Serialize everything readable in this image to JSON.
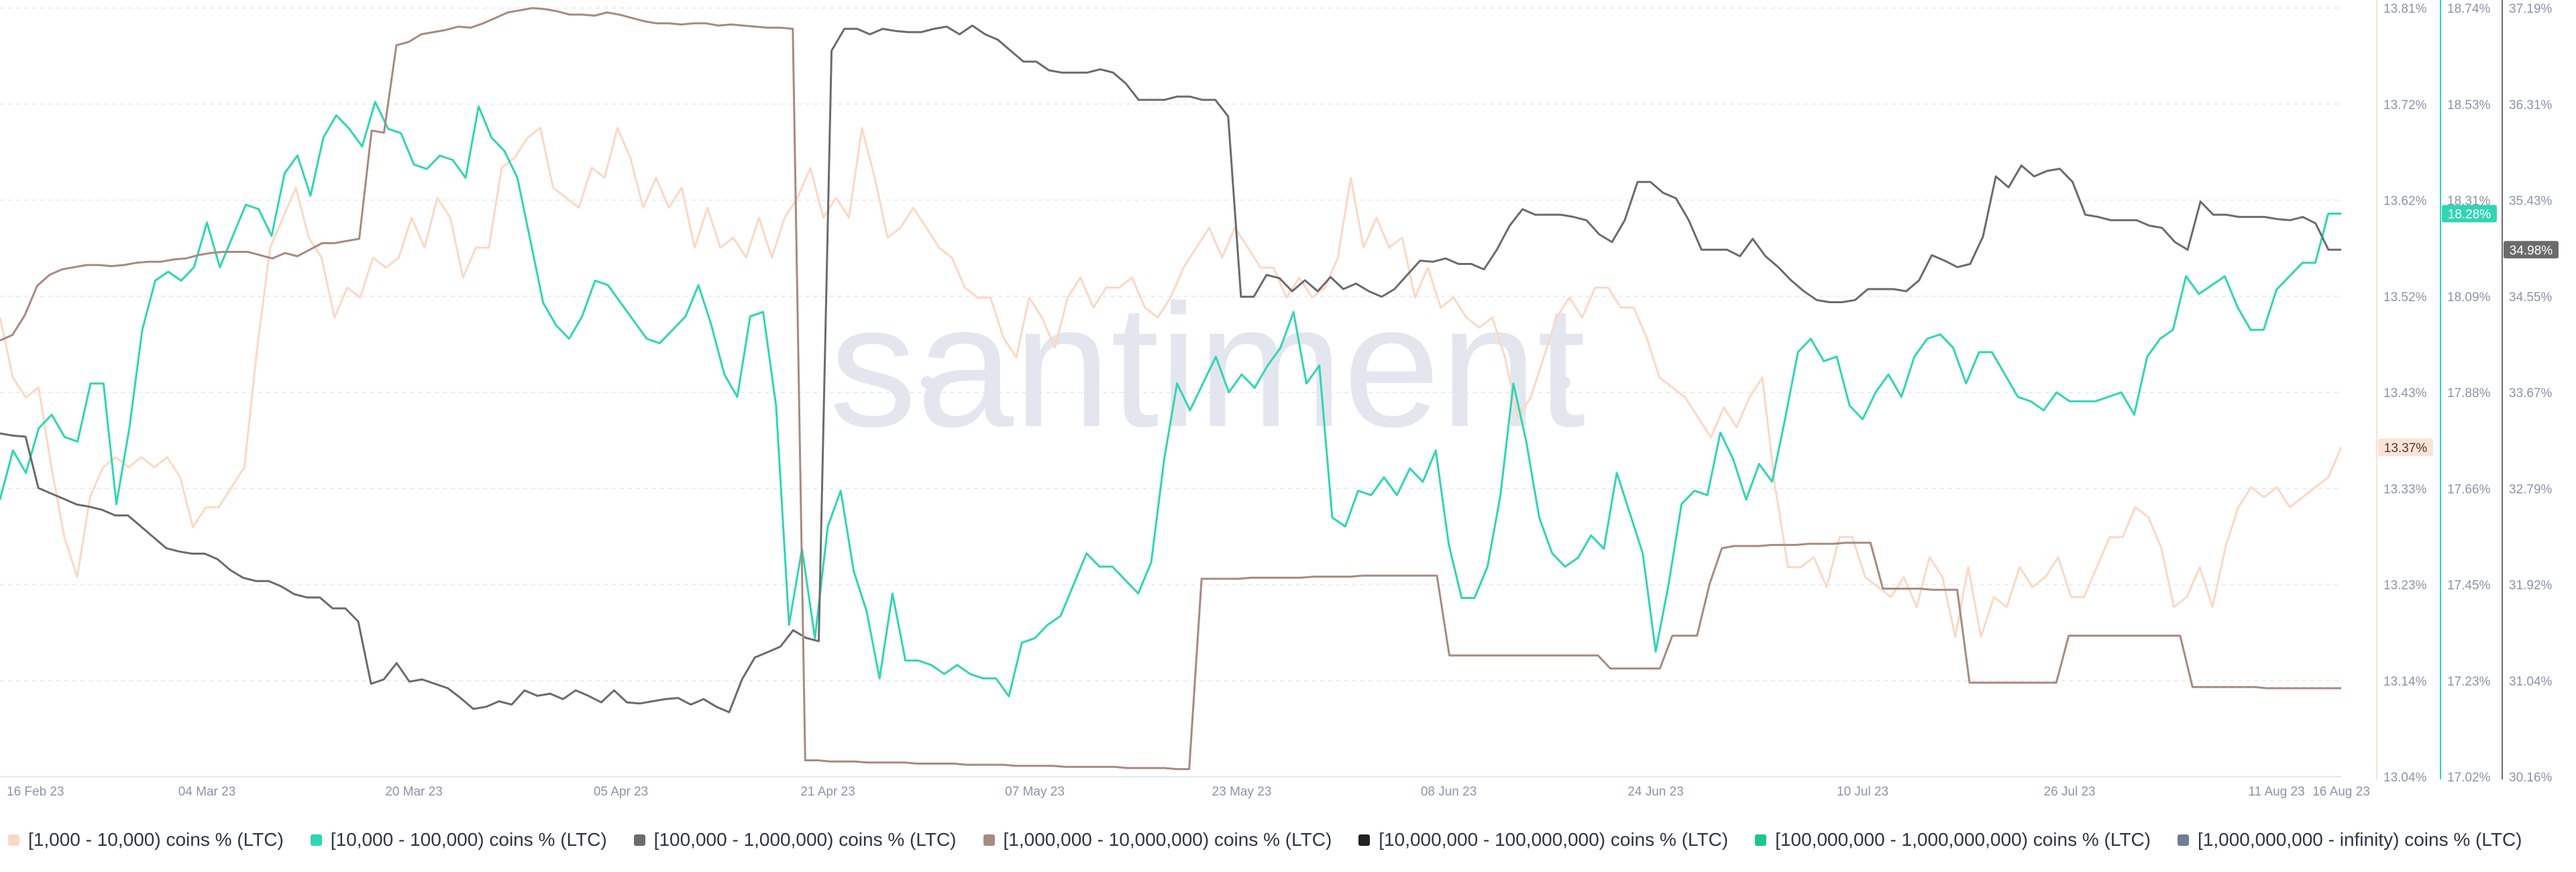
{
  "chart_data": {
    "type": "line",
    "title": "",
    "watermark": "santiment",
    "x_labels": [
      "16 Feb 23",
      "04 Mar 23",
      "20 Mar 23",
      "05 Apr 23",
      "21 Apr 23",
      "07 May 23",
      "23 May 23",
      "08 Jun 23",
      "24 Jun 23",
      "10 Jul 23",
      "26 Jul 23",
      "11 Aug 23",
      "16 Aug 23"
    ],
    "x_label_days": [
      0,
      16,
      32,
      48,
      64,
      80,
      96,
      112,
      128,
      144,
      160,
      176,
      181
    ],
    "axes": [
      {
        "id": "a1",
        "ticks": [
          "13.81%",
          "13.72%",
          "13.62%",
          "13.52%",
          "13.43%",
          "13.33%",
          "13.23%",
          "13.14%",
          "13.04%"
        ],
        "min": 13.04,
        "max": 13.81
      },
      {
        "id": "a2",
        "ticks": [
          "18.74%",
          "18.53%",
          "18.31%",
          "18.09%",
          "17.88%",
          "17.66%",
          "17.45%",
          "17.23%",
          "17.02%"
        ],
        "min": 17.02,
        "max": 18.74
      },
      {
        "id": "a3",
        "ticks": [
          "37.19%",
          "36.31%",
          "35.43%",
          "34.55%",
          "33.67%",
          "32.79%",
          "31.92%",
          "31.04%",
          "30.16%"
        ],
        "min": 30.16,
        "max": 37.19
      }
    ],
    "series": [
      {
        "name": "[1,000 - 10,000) coins % (LTC)",
        "color": "#fbd8c4",
        "axis": "a1",
        "values": [
          13.5,
          13.44,
          13.42,
          13.43,
          13.35,
          13.28,
          13.24,
          13.32,
          13.35,
          13.36,
          13.35,
          13.36,
          13.35,
          13.36,
          13.34,
          13.29,
          13.31,
          13.31,
          13.33,
          13.35,
          13.47,
          13.57,
          13.6,
          13.63,
          13.58,
          13.56,
          13.5,
          13.53,
          13.52,
          13.56,
          13.55,
          13.56,
          13.6,
          13.57,
          13.62,
          13.6,
          13.54,
          13.57,
          13.57,
          13.65,
          13.66,
          13.68,
          13.69,
          13.63,
          13.62,
          13.61,
          13.65,
          13.64,
          13.69,
          13.66,
          13.61,
          13.64,
          13.61,
          13.63,
          13.57,
          13.61,
          13.57,
          13.58,
          13.56,
          13.6,
          13.56,
          13.6,
          13.62,
          13.65,
          13.6,
          13.62,
          13.6,
          13.69,
          13.64,
          13.58,
          13.59,
          13.61,
          13.59,
          13.57,
          13.56,
          13.53,
          13.52,
          13.52,
          13.48,
          13.46,
          13.52,
          13.5,
          13.47,
          13.52,
          13.54,
          13.51,
          13.53,
          13.53,
          13.54,
          13.51,
          13.5,
          13.52,
          13.55,
          13.57,
          13.59,
          13.56,
          13.59,
          13.57,
          13.55,
          13.55,
          13.52,
          13.54,
          13.52,
          13.53,
          13.56,
          13.64,
          13.57,
          13.6,
          13.57,
          13.58,
          13.52,
          13.55,
          13.51,
          13.52,
          13.5,
          13.49,
          13.5,
          13.46,
          13.4,
          13.42,
          13.46,
          13.5,
          13.52,
          13.5,
          13.53,
          13.53,
          13.51,
          13.51,
          13.48,
          13.44,
          13.43,
          13.42,
          13.4,
          13.38,
          13.41,
          13.39,
          13.42,
          13.44,
          13.33,
          13.25,
          13.25,
          13.26,
          13.23,
          13.28,
          13.28,
          13.24,
          13.23,
          13.22,
          13.24,
          13.21,
          13.26,
          13.24,
          13.18,
          13.25,
          13.18,
          13.22,
          13.21,
          13.25,
          13.23,
          13.24,
          13.26,
          13.22,
          13.22,
          13.25,
          13.28,
          13.28,
          13.31,
          13.3,
          13.27,
          13.21,
          13.22,
          13.25,
          13.21,
          13.27,
          13.31,
          13.33,
          13.32,
          13.33,
          13.31,
          13.32,
          13.33,
          13.34,
          13.37
        ]
      },
      {
        "name": "[10,000 - 100,000) coins % (LTC)",
        "color": "#30d5b3",
        "axis": "a2",
        "values": [
          17.64,
          17.75,
          17.7,
          17.8,
          17.83,
          17.78,
          17.77,
          17.9,
          17.9,
          17.63,
          17.8,
          18.02,
          18.13,
          18.15,
          18.13,
          18.16,
          18.26,
          18.16,
          18.23,
          18.3,
          18.29,
          18.23,
          18.37,
          18.41,
          18.32,
          18.45,
          18.5,
          18.47,
          18.43,
          18.53,
          18.47,
          18.46,
          18.39,
          18.38,
          18.41,
          18.4,
          18.36,
          18.52,
          18.45,
          18.42,
          18.36,
          18.22,
          18.08,
          18.03,
          18.0,
          18.05,
          18.13,
          18.12,
          18.08,
          18.04,
          18.0,
          17.99,
          18.02,
          18.05,
          18.12,
          18.03,
          17.92,
          17.87,
          18.05,
          18.06,
          17.85,
          17.36,
          17.53,
          17.33,
          17.58,
          17.66,
          17.48,
          17.39,
          17.24,
          17.43,
          17.28,
          17.28,
          17.27,
          17.25,
          17.27,
          17.25,
          17.24,
          17.24,
          17.2,
          17.32,
          17.33,
          17.36,
          17.38,
          17.45,
          17.52,
          17.49,
          17.49,
          17.46,
          17.43,
          17.5,
          17.73,
          17.9,
          17.84,
          17.9,
          17.96,
          17.88,
          17.92,
          17.89,
          17.94,
          17.98,
          18.06,
          17.9,
          17.94,
          17.6,
          17.58,
          17.66,
          17.65,
          17.69,
          17.65,
          17.71,
          17.68,
          17.75,
          17.54,
          17.42,
          17.42,
          17.49,
          17.65,
          17.9,
          17.77,
          17.6,
          17.52,
          17.49,
          17.51,
          17.56,
          17.53,
          17.7,
          17.61,
          17.52,
          17.3,
          17.45,
          17.63,
          17.66,
          17.65,
          17.79,
          17.73,
          17.64,
          17.72,
          17.68,
          17.82,
          17.97,
          18.0,
          17.95,
          17.96,
          17.85,
          17.82,
          17.88,
          17.92,
          17.87,
          17.96,
          18.0,
          18.01,
          17.98,
          17.9,
          17.97,
          17.97,
          17.92,
          17.87,
          17.86,
          17.84,
          17.88,
          17.86,
          17.86,
          17.86,
          17.87,
          17.88,
          17.83,
          17.96,
          18.0,
          18.02,
          18.14,
          18.1,
          18.12,
          18.14,
          18.07,
          18.02,
          18.02,
          18.11,
          18.14,
          18.17,
          18.17,
          18.28,
          18.28
        ]
      },
      {
        "name": "[100,000  - 1,000,000) coins % (LTC)",
        "color": "#6b6b6b",
        "axis": "a3",
        "values": [
          33.3,
          33.28,
          33.27,
          32.8,
          32.75,
          32.7,
          32.65,
          32.63,
          32.6,
          32.55,
          32.55,
          32.45,
          32.35,
          32.25,
          32.22,
          32.2,
          32.2,
          32.15,
          32.05,
          31.98,
          31.95,
          31.95,
          31.9,
          31.83,
          31.8,
          31.8,
          31.7,
          31.7,
          31.58,
          31.01,
          31.05,
          31.2,
          31.03,
          31.05,
          31.01,
          30.97,
          30.88,
          30.78,
          30.8,
          30.85,
          30.82,
          30.95,
          30.9,
          30.92,
          30.87,
          30.95,
          30.9,
          30.84,
          30.95,
          30.84,
          30.83,
          30.85,
          30.87,
          30.88,
          30.82,
          30.87,
          30.8,
          30.75,
          31.05,
          31.25,
          31.3,
          31.35,
          31.5,
          31.43,
          31.4,
          36.8,
          37.0,
          37.0,
          36.95,
          37.0,
          36.98,
          36.97,
          36.97,
          37.0,
          37.02,
          36.95,
          37.03,
          36.95,
          36.9,
          36.8,
          36.7,
          36.7,
          36.62,
          36.6,
          36.6,
          36.6,
          36.63,
          36.6,
          36.5,
          36.35,
          36.35,
          36.35,
          36.38,
          36.38,
          36.35,
          36.35,
          36.2,
          34.55,
          34.55,
          34.75,
          34.72,
          34.6,
          34.7,
          34.6,
          34.73,
          34.62,
          34.67,
          34.6,
          34.55,
          34.62,
          34.75,
          34.88,
          34.87,
          34.9,
          34.85,
          34.85,
          34.8,
          34.98,
          35.2,
          35.35,
          35.3,
          35.3,
          35.3,
          35.28,
          35.25,
          35.12,
          35.05,
          35.25,
          35.6,
          35.6,
          35.5,
          35.45,
          35.25,
          34.98,
          34.98,
          34.98,
          34.92,
          35.08,
          34.92,
          34.82,
          34.7,
          34.6,
          34.52,
          34.5,
          34.5,
          34.52,
          34.62,
          34.62,
          34.62,
          34.6,
          34.7,
          34.93,
          34.88,
          34.82,
          34.85,
          35.1,
          35.65,
          35.55,
          35.75,
          35.65,
          35.7,
          35.72,
          35.6,
          35.3,
          35.28,
          35.25,
          35.25,
          35.25,
          35.2,
          35.18,
          35.05,
          34.98,
          35.42,
          35.3,
          35.3,
          35.28,
          35.28,
          35.28,
          35.26,
          35.25,
          35.28,
          35.22,
          34.98,
          34.98
        ]
      },
      {
        "name": "[1,000,000 - 10,000,000) coins % (LTC)",
        "color": "#a78a7f",
        "axis": "a3",
        "values": [
          34.15,
          34.2,
          34.38,
          34.65,
          34.75,
          34.8,
          34.82,
          34.84,
          34.84,
          34.83,
          34.84,
          34.86,
          34.87,
          34.87,
          34.89,
          34.9,
          34.93,
          34.95,
          34.96,
          34.96,
          34.96,
          34.93,
          34.9,
          34.95,
          34.92,
          34.98,
          35.04,
          35.04,
          35.06,
          35.08,
          36.07,
          36.05,
          36.85,
          36.88,
          36.95,
          36.97,
          36.99,
          37.02,
          37.01,
          37.05,
          37.1,
          37.15,
          37.17,
          37.19,
          37.18,
          37.16,
          37.13,
          37.13,
          37.12,
          37.15,
          37.13,
          37.1,
          37.07,
          37.05,
          37.05,
          37.04,
          37.05,
          37.05,
          37.03,
          37.04,
          37.03,
          37.02,
          37.01,
          37.01,
          37.0,
          30.31,
          30.31,
          30.3,
          30.3,
          30.3,
          30.29,
          30.29,
          30.29,
          30.29,
          30.28,
          30.28,
          30.28,
          30.28,
          30.27,
          30.27,
          30.27,
          30.27,
          30.26,
          30.26,
          30.26,
          30.26,
          30.25,
          30.25,
          30.25,
          30.25,
          30.25,
          30.24,
          30.24,
          30.24,
          30.24,
          30.23,
          30.23,
          31.97,
          31.97,
          31.97,
          31.97,
          31.98,
          31.98,
          31.98,
          31.98,
          31.98,
          31.99,
          31.99,
          31.99,
          31.99,
          32.0,
          32.0,
          32.0,
          32.0,
          32.0,
          32.0,
          32.0,
          31.27,
          31.27,
          31.27,
          31.27,
          31.27,
          31.27,
          31.27,
          31.27,
          31.27,
          31.27,
          31.27,
          31.27,
          31.27,
          31.15,
          31.15,
          31.15,
          31.15,
          31.15,
          31.45,
          31.45,
          31.45,
          31.92,
          32.25,
          32.27,
          32.27,
          32.27,
          32.28,
          32.28,
          32.28,
          32.29,
          32.29,
          32.29,
          32.3,
          32.3,
          32.3,
          31.88,
          31.88,
          31.88,
          31.88,
          31.87,
          31.87,
          31.87,
          31.02,
          31.02,
          31.02,
          31.02,
          31.02,
          31.02,
          31.02,
          31.02,
          31.45,
          31.45,
          31.45,
          31.45,
          31.45,
          31.45,
          31.45,
          31.45,
          31.45,
          31.45,
          30.98,
          30.98,
          30.98,
          30.98,
          30.98,
          30.98,
          30.97,
          30.97,
          30.97,
          30.97,
          30.97,
          30.97,
          30.97
        ]
      }
    ],
    "legend": [
      {
        "label": "[1,000 - 10,000) coins % (LTC)",
        "color": "#fbd8c4"
      },
      {
        "label": "[10,000 - 100,000) coins % (LTC)",
        "color": "#30d5b3"
      },
      {
        "label": "[100,000  - 1,000,000) coins % (LTC)",
        "color": "#6b6b6b"
      },
      {
        "label": "[1,000,000 - 10,000,000) coins % (LTC)",
        "color": "#a78a7f"
      },
      {
        "label": "[10,000,000 - 100,000,000) coins % (LTC)",
        "color": "#222222"
      },
      {
        "label": "[100,000,000 - 1,000,000,000) coins % (LTC)",
        "color": "#1cc78f"
      },
      {
        "label": "[1,000,000,000 - infinity) coins % (LTC)",
        "color": "#6e7f93"
      }
    ],
    "badges": [
      {
        "axis": "a1",
        "text": "13.37%",
        "bg": "#fde3d6",
        "fg": "#4a3b33",
        "value": 13.37
      },
      {
        "axis": "a2",
        "text": "18.28%",
        "bg": "#30d5b3",
        "fg": "#ffffff",
        "value": 18.28
      },
      {
        "axis": "a3",
        "text": "34.98%",
        "bg": "#6b6b6b",
        "fg": "#ffffff",
        "value": 34.98
      }
    ]
  }
}
